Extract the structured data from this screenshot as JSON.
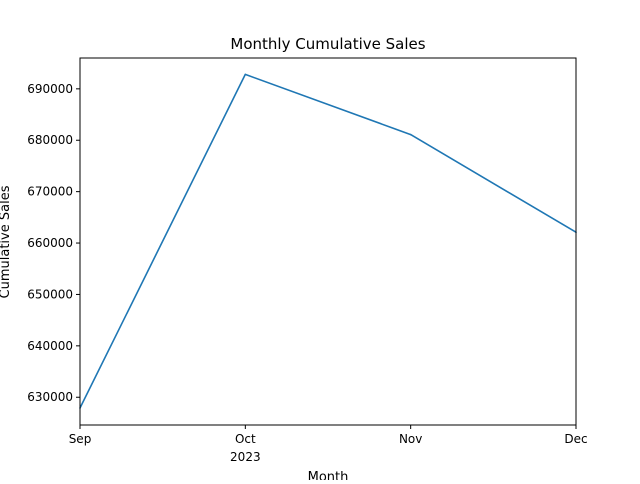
{
  "chart_data": {
    "type": "line",
    "title": "Monthly Cumulative Sales",
    "xlabel": "Month",
    "ylabel": "Cumulative Sales",
    "x": [
      "2023-09",
      "2023-10",
      "2023-11",
      "2023-12"
    ],
    "x_tick_labels": [
      "Sep",
      "Oct",
      "Nov",
      "Dec"
    ],
    "x_year_label": "2023",
    "series": [
      {
        "values": [
          627900,
          692800,
          681100,
          662100
        ],
        "color": "#1f77b4"
      }
    ],
    "ylim": [
      624600,
      696000
    ],
    "yticks": [
      630000,
      640000,
      650000,
      660000,
      670000,
      680000,
      690000
    ],
    "ytick_labels": [
      "630000",
      "640000",
      "650000",
      "660000",
      "670000",
      "680000",
      "690000"
    ],
    "grid": false,
    "legend": false
  }
}
